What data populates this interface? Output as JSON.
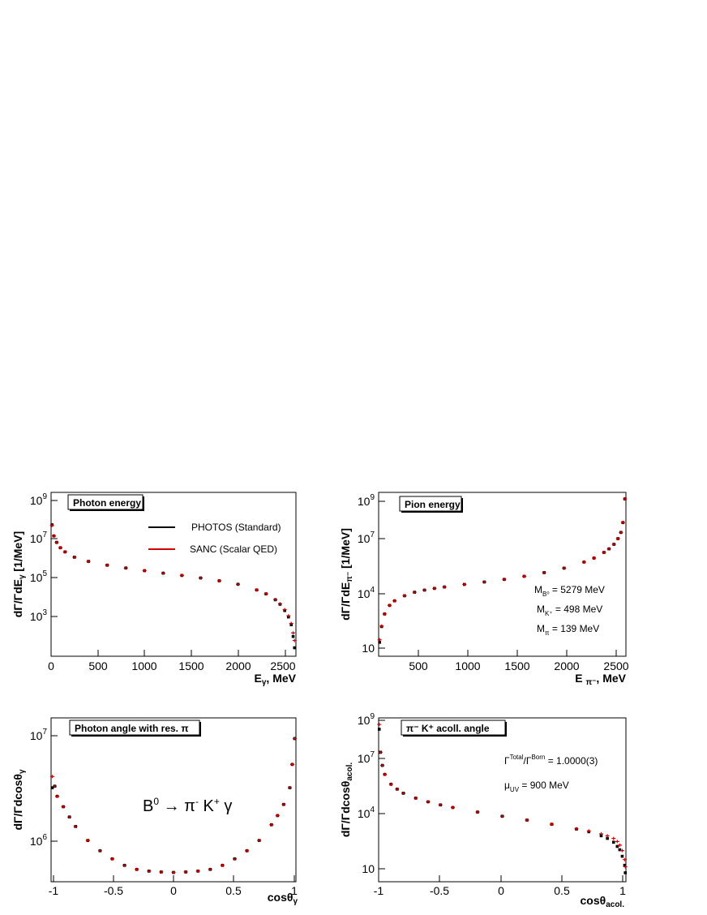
{
  "legend": {
    "series": [
      {
        "name": "PHOTOS (Standard)",
        "color": "#000000",
        "marker": "square"
      },
      {
        "name": "SANC (Scalar QED)",
        "color": "#d00000",
        "marker": "cross"
      }
    ]
  },
  "colors": {
    "photos": "#000000",
    "sanc": "#d00000",
    "frame": "#000000",
    "background": "#ffffff"
  },
  "chart_data": [
    {
      "id": "photon-energy",
      "type": "scatter",
      "title": "Photon energy",
      "xlabel": "E_γ, MeV",
      "ylabel": "dΓ/ΓdE_γ [1/MeV]",
      "xlim": [
        0,
        2620
      ],
      "ylim": [
        20,
        1000000000.0
      ],
      "log_y": true,
      "xticks": [
        {
          "v": 0,
          "label": "0"
        },
        {
          "v": 500,
          "label": "500"
        },
        {
          "v": 1000,
          "label": "1000"
        },
        {
          "v": 1500,
          "label": "1500"
        },
        {
          "v": 2000,
          "label": "2000"
        },
        {
          "v": 2500,
          "label": "2500"
        }
      ],
      "yticks": [
        {
          "v": 1000000000.0,
          "base": "10",
          "exp": "9"
        },
        {
          "v": 10000000.0,
          "base": "10",
          "exp": "7"
        },
        {
          "v": 100000.0,
          "base": "10",
          "exp": "5"
        },
        {
          "v": 1000.0,
          "base": "10",
          "exp": "3"
        }
      ],
      "legend_position": "top-right",
      "annotations": [],
      "series": [
        {
          "name": "PHOTOS (Standard)",
          "marker": "square",
          "x": [
            10,
            30,
            60,
            100,
            150,
            250,
            400,
            600,
            800,
            1000,
            1200,
            1400,
            1600,
            1800,
            2000,
            2200,
            2300,
            2400,
            2450,
            2500,
            2540,
            2570,
            2590,
            2605
          ],
          "y": [
            30000000,
            9000000,
            4500000,
            2500000,
            1600000,
            900000,
            570000,
            380000,
            280000,
            210000,
            160000,
            125000,
            95000,
            70000,
            48000,
            26000,
            17000,
            9000,
            5500,
            2800,
            1400,
            600,
            170,
            50
          ]
        },
        {
          "name": "SANC (Scalar QED)",
          "marker": "cross",
          "x": [
            10,
            30,
            60,
            100,
            150,
            250,
            400,
            600,
            800,
            1000,
            1200,
            1400,
            1600,
            1800,
            2000,
            2200,
            2300,
            2400,
            2450,
            2500,
            2540,
            2570,
            2590,
            2605
          ],
          "y": [
            28000000,
            9000000,
            4400000,
            2500000,
            1600000,
            900000,
            570000,
            380000,
            280000,
            210000,
            160000,
            125000,
            95000,
            70000,
            48000,
            26000,
            17000,
            9200,
            5800,
            3100,
            1600,
            700,
            250,
            110
          ]
        }
      ]
    },
    {
      "id": "pion-energy",
      "type": "scatter",
      "title": "Pion energy",
      "xlabel": "E π⁻, MeV",
      "ylabel": "dΓ/ΓdE_π⁻ [1/MeV]",
      "xlim": [
        140,
        2620
      ],
      "ylim": [
        4,
        2000000000.0
      ],
      "log_y": true,
      "xticks": [
        {
          "v": 500,
          "label": "500"
        },
        {
          "v": 1000,
          "label": "1000"
        },
        {
          "v": 1500,
          "label": "1500"
        },
        {
          "v": 2000,
          "label": "2000"
        },
        {
          "v": 2500,
          "label": "2500"
        }
      ],
      "yticks": [
        {
          "v": 1000000000.0,
          "base": "10",
          "exp": "9"
        },
        {
          "v": 10000000.0,
          "base": "10",
          "exp": "7"
        },
        {
          "v": 10000.0,
          "base": "10",
          "exp": "4"
        },
        {
          "v": 10,
          "base": "10",
          "exp": ""
        }
      ],
      "legend_position": "",
      "annotations": [
        "M_B⁰ = 5279 MeV",
        "M_K⁺ = 498 MeV",
        "M_π = 139 MeV"
      ],
      "series": [
        {
          "name": "PHOTOS (Standard)",
          "marker": "square",
          "x": [
            150,
            170,
            200,
            250,
            300,
            400,
            500,
            600,
            700,
            800,
            1000,
            1200,
            1400,
            1600,
            1800,
            2000,
            2200,
            2300,
            2400,
            2450,
            2500,
            2540,
            2570,
            2590,
            2610
          ],
          "y": [
            22,
            150,
            700,
            2000,
            3500,
            6500,
            10000,
            13000,
            16000,
            19000,
            26000,
            35000,
            48000,
            70000,
            110000,
            190000,
            400000,
            650000,
            1300000,
            2000000,
            3500000,
            7000000,
            15000000,
            50000000,
            900000000
          ]
        },
        {
          "name": "SANC (Scalar QED)",
          "marker": "cross",
          "x": [
            150,
            170,
            200,
            250,
            300,
            400,
            500,
            600,
            700,
            800,
            1000,
            1200,
            1400,
            1600,
            1800,
            2000,
            2200,
            2300,
            2400,
            2450,
            2500,
            2540,
            2570,
            2590,
            2610
          ],
          "y": [
            30,
            160,
            700,
            2000,
            3500,
            6500,
            10000,
            13000,
            16000,
            19000,
            26000,
            35000,
            48000,
            70000,
            110000,
            190000,
            400000,
            650000,
            1300000,
            2000000,
            3500000,
            7000000,
            15000000,
            50000000,
            900000000
          ]
        }
      ]
    },
    {
      "id": "photon-angle",
      "type": "scatter",
      "title": "Photon angle with res. π",
      "xlabel": "cosθ_γ",
      "ylabel": "dΓ/Γdcosθ_γ",
      "xlim": [
        -1,
        1
      ],
      "ylim": [
        450000,
        13000000
      ],
      "log_y": true,
      "xticks": [
        {
          "v": -1,
          "label": "-1"
        },
        {
          "v": -0.5,
          "label": "-0.5"
        },
        {
          "v": 0,
          "label": "0"
        },
        {
          "v": 0.5,
          "label": "0.5"
        },
        {
          "v": 1,
          "label": "1"
        }
      ],
      "yticks": [
        {
          "v": 10000000.0,
          "base": "10",
          "exp": "7"
        },
        {
          "v": 1000000.0,
          "base": "10",
          "exp": "6"
        }
      ],
      "legend_position": "",
      "annotations": [
        "B⁰ → π⁻ K⁺ γ"
      ],
      "series": [
        {
          "name": "PHOTOS (Standard)",
          "marker": "square",
          "x": [
            -0.99,
            -0.97,
            -0.95,
            -0.9,
            -0.85,
            -0.8,
            -0.7,
            -0.6,
            -0.5,
            -0.4,
            -0.3,
            -0.2,
            -0.1,
            0,
            0.1,
            0.2,
            0.3,
            0.4,
            0.5,
            0.6,
            0.7,
            0.8,
            0.85,
            0.9,
            0.95,
            0.97,
            0.99
          ],
          "y": [
            3100000,
            3200000,
            2600000,
            2100000,
            1700000,
            1400000,
            1050000,
            850000,
            720000,
            630000,
            580000,
            560000,
            550000,
            545000,
            550000,
            560000,
            580000,
            630000,
            720000,
            850000,
            1050000,
            1450000,
            1750000,
            2200000,
            3100000,
            5000000,
            8500000
          ]
        },
        {
          "name": "SANC (Scalar QED)",
          "marker": "cross",
          "x": [
            -0.99,
            -0.97,
            -0.95,
            -0.9,
            -0.85,
            -0.8,
            -0.7,
            -0.6,
            -0.5,
            -0.4,
            -0.3,
            -0.2,
            -0.1,
            0,
            0.1,
            0.2,
            0.3,
            0.4,
            0.5,
            0.6,
            0.7,
            0.8,
            0.85,
            0.9,
            0.95,
            0.97,
            0.99
          ],
          "y": [
            3900000,
            3200000,
            2600000,
            2100000,
            1700000,
            1400000,
            1050000,
            850000,
            720000,
            630000,
            580000,
            560000,
            550000,
            545000,
            550000,
            560000,
            580000,
            630000,
            720000,
            850000,
            1050000,
            1450000,
            1750000,
            2200000,
            3100000,
            5000000,
            8500000
          ]
        }
      ]
    },
    {
      "id": "acoll-angle",
      "type": "scatter",
      "title": "π⁻ K⁺ acoll. angle",
      "xlabel": "cosθ_acol.",
      "ylabel": "dΓ/Γdcosθ_acol.",
      "xlim": [
        -1,
        1
      ],
      "ylim": [
        4,
        2000000000.0
      ],
      "log_y": true,
      "xticks": [
        {
          "v": -1,
          "label": "-1"
        },
        {
          "v": -0.5,
          "label": "-0.5"
        },
        {
          "v": 0,
          "label": "0"
        },
        {
          "v": 0.5,
          "label": "0.5"
        },
        {
          "v": 1,
          "label": "1"
        }
      ],
      "yticks": [
        {
          "v": 1000000000.0,
          "base": "10",
          "exp": "9"
        },
        {
          "v": 10000000.0,
          "base": "10",
          "exp": "7"
        },
        {
          "v": 10000.0,
          "base": "10",
          "exp": "4"
        },
        {
          "v": 10,
          "base": "10",
          "exp": ""
        }
      ],
      "legend_position": "",
      "annotations": [
        "Γ^Total/Γ^Born = 1.0000(3)",
        "μ_UV = 900 MeV"
      ],
      "series": [
        {
          "name": "PHOTOS (Standard)",
          "marker": "square",
          "x": [
            -0.995,
            -0.985,
            -0.97,
            -0.95,
            -0.9,
            -0.85,
            -0.8,
            -0.7,
            -0.6,
            -0.5,
            -0.4,
            -0.2,
            0,
            0.2,
            0.4,
            0.6,
            0.7,
            0.8,
            0.85,
            0.9,
            0.93,
            0.95,
            0.97,
            0.99,
            0.995
          ],
          "y": [
            500000000,
            30000000,
            6000000,
            2000000,
            600000,
            330000,
            200000,
            110000,
            70000,
            48000,
            35000,
            20000,
            12000,
            7500,
            4500,
            2500,
            1800,
            1100,
            800,
            500,
            300,
            200,
            90,
            30,
            12
          ]
        },
        {
          "name": "SANC (Scalar QED)",
          "marker": "cross",
          "x": [
            -0.995,
            -0.985,
            -0.97,
            -0.95,
            -0.9,
            -0.85,
            -0.8,
            -0.7,
            -0.6,
            -0.5,
            -0.4,
            -0.2,
            0,
            0.2,
            0.4,
            0.6,
            0.7,
            0.8,
            0.85,
            0.9,
            0.93,
            0.95,
            0.97,
            0.99,
            0.995
          ],
          "y": [
            900000000,
            30000000,
            6000000,
            2000000,
            600000,
            330000,
            200000,
            110000,
            70000,
            48000,
            35000,
            20000,
            12000,
            7500,
            4500,
            2600,
            2000,
            1400,
            1100,
            800,
            550,
            350,
            180,
            60,
            25
          ]
        }
      ]
    }
  ]
}
